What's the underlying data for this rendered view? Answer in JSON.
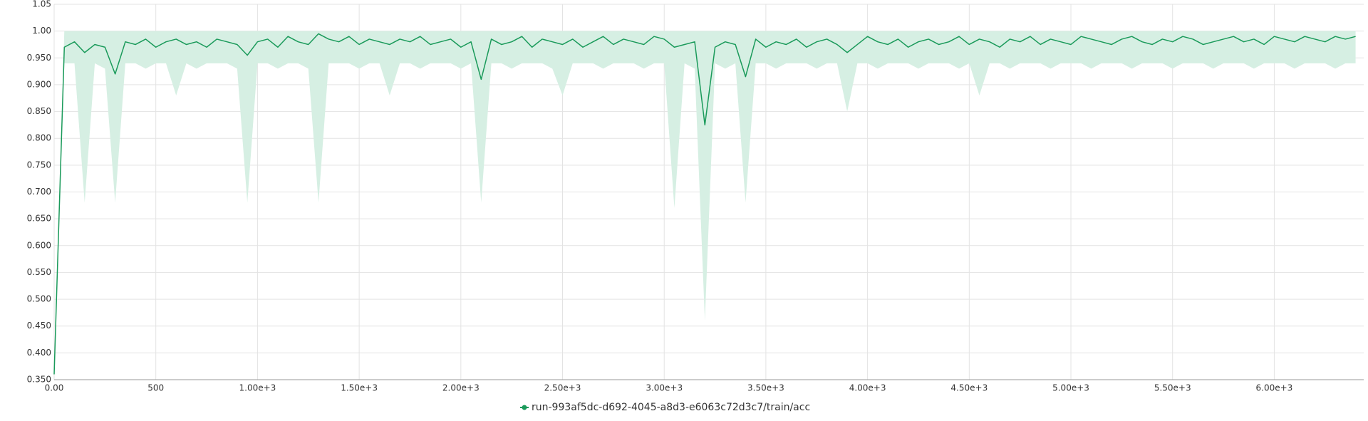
{
  "chart_data": {
    "type": "line",
    "x": [
      0,
      50,
      100,
      150,
      200,
      250,
      300,
      350,
      400,
      450,
      500,
      550,
      600,
      650,
      700,
      750,
      800,
      850,
      900,
      950,
      1000,
      1050,
      1100,
      1150,
      1200,
      1250,
      1300,
      1350,
      1400,
      1450,
      1500,
      1550,
      1600,
      1650,
      1700,
      1750,
      1800,
      1850,
      1900,
      1950,
      2000,
      2050,
      2100,
      2150,
      2200,
      2250,
      2300,
      2350,
      2400,
      2450,
      2500,
      2550,
      2600,
      2650,
      2700,
      2750,
      2800,
      2850,
      2900,
      2950,
      3000,
      3050,
      3100,
      3150,
      3200,
      3250,
      3300,
      3350,
      3400,
      3450,
      3500,
      3550,
      3600,
      3650,
      3700,
      3750,
      3800,
      3850,
      3900,
      3950,
      4000,
      4050,
      4100,
      4150,
      4200,
      4250,
      4300,
      4350,
      4400,
      4450,
      4500,
      4550,
      4600,
      4650,
      4700,
      4750,
      4800,
      4850,
      4900,
      4950,
      5000,
      5050,
      5100,
      5150,
      5200,
      5250,
      5300,
      5350,
      5400,
      5450,
      5500,
      5550,
      5600,
      5650,
      5700,
      5750,
      5800,
      5850,
      5900,
      5950,
      6000,
      6050,
      6100,
      6150,
      6200,
      6250,
      6300,
      6350,
      6400
    ],
    "series": [
      {
        "name": "run-993af5dc-d692-4045-a8d3-e6063c72d3c7/train/acc",
        "color": "#1a9a5a",
        "band_color": "#d6efe3",
        "values": [
          0.36,
          0.97,
          0.98,
          0.96,
          0.975,
          0.97,
          0.92,
          0.98,
          0.975,
          0.985,
          0.97,
          0.98,
          0.985,
          0.975,
          0.98,
          0.97,
          0.985,
          0.98,
          0.975,
          0.955,
          0.98,
          0.985,
          0.97,
          0.99,
          0.98,
          0.975,
          0.995,
          0.985,
          0.98,
          0.99,
          0.975,
          0.985,
          0.98,
          0.975,
          0.985,
          0.98,
          0.99,
          0.975,
          0.98,
          0.985,
          0.97,
          0.98,
          0.91,
          0.985,
          0.975,
          0.98,
          0.99,
          0.97,
          0.985,
          0.98,
          0.975,
          0.985,
          0.97,
          0.98,
          0.99,
          0.975,
          0.985,
          0.98,
          0.975,
          0.99,
          0.985,
          0.97,
          0.975,
          0.98,
          0.825,
          0.97,
          0.98,
          0.975,
          0.915,
          0.985,
          0.97,
          0.98,
          0.975,
          0.985,
          0.97,
          0.98,
          0.985,
          0.975,
          0.96,
          0.975,
          0.99,
          0.98,
          0.975,
          0.985,
          0.97,
          0.98,
          0.985,
          0.975,
          0.98,
          0.99,
          0.975,
          0.985,
          0.98,
          0.97,
          0.985,
          0.98,
          0.99,
          0.975,
          0.985,
          0.98,
          0.975,
          0.99,
          0.985,
          0.98,
          0.975,
          0.985,
          0.99,
          0.98,
          0.975,
          0.985,
          0.98,
          0.99,
          0.985,
          0.975,
          0.98,
          0.985,
          0.99,
          0.98,
          0.985,
          0.975,
          0.99,
          0.985,
          0.98,
          0.99,
          0.985,
          0.98,
          0.99,
          0.985,
          0.99
        ],
        "lower": [
          0.36,
          0.94,
          0.94,
          0.68,
          0.94,
          0.93,
          0.68,
          0.94,
          0.94,
          0.93,
          0.94,
          0.94,
          0.88,
          0.94,
          0.93,
          0.94,
          0.94,
          0.94,
          0.93,
          0.68,
          0.94,
          0.94,
          0.93,
          0.94,
          0.94,
          0.93,
          0.68,
          0.94,
          0.94,
          0.94,
          0.93,
          0.94,
          0.94,
          0.88,
          0.94,
          0.94,
          0.93,
          0.94,
          0.94,
          0.94,
          0.93,
          0.94,
          0.68,
          0.94,
          0.94,
          0.93,
          0.94,
          0.94,
          0.94,
          0.93,
          0.88,
          0.94,
          0.94,
          0.94,
          0.93,
          0.94,
          0.94,
          0.94,
          0.93,
          0.94,
          0.94,
          0.67,
          0.94,
          0.93,
          0.46,
          0.94,
          0.93,
          0.94,
          0.68,
          0.94,
          0.94,
          0.93,
          0.94,
          0.94,
          0.94,
          0.93,
          0.94,
          0.94,
          0.85,
          0.94,
          0.94,
          0.93,
          0.94,
          0.94,
          0.94,
          0.93,
          0.94,
          0.94,
          0.94,
          0.93,
          0.94,
          0.88,
          0.94,
          0.94,
          0.93,
          0.94,
          0.94,
          0.94,
          0.93,
          0.94,
          0.94,
          0.94,
          0.93,
          0.94,
          0.94,
          0.94,
          0.93,
          0.94,
          0.94,
          0.94,
          0.93,
          0.94,
          0.94,
          0.94,
          0.93,
          0.94,
          0.94,
          0.94,
          0.93,
          0.94,
          0.94,
          0.94,
          0.93,
          0.94,
          0.94,
          0.94,
          0.93,
          0.94,
          0.94
        ],
        "upper": [
          0.36,
          1,
          1,
          1,
          1,
          1,
          1,
          1,
          1,
          1,
          1,
          1,
          1,
          1,
          1,
          1,
          1,
          1,
          1,
          1,
          1,
          1,
          1,
          1,
          1,
          1,
          1,
          1,
          1,
          1,
          1,
          1,
          1,
          1,
          1,
          1,
          1,
          1,
          1,
          1,
          1,
          1,
          1,
          1,
          1,
          1,
          1,
          1,
          1,
          1,
          1,
          1,
          1,
          1,
          1,
          1,
          1,
          1,
          1,
          1,
          1,
          1,
          1,
          1,
          1,
          1,
          1,
          1,
          1,
          1,
          1,
          1,
          1,
          1,
          1,
          1,
          1,
          1,
          1,
          1,
          1,
          1,
          1,
          1,
          1,
          1,
          1,
          1,
          1,
          1,
          1,
          1,
          1,
          1,
          1,
          1,
          1,
          1,
          1,
          1,
          1,
          1,
          1,
          1,
          1,
          1,
          1,
          1,
          1,
          1,
          1,
          1,
          1,
          1,
          1,
          1,
          1,
          1,
          1,
          1,
          1,
          1,
          1,
          1,
          1,
          1,
          1,
          1,
          1
        ]
      }
    ],
    "xlim": [
      0,
      6440
    ],
    "ylim": [
      0.35,
      1.05
    ],
    "xticks": [
      {
        "value": 0,
        "label": "0.00"
      },
      500,
      {
        "value": 1000,
        "label": "1.00e+3"
      },
      {
        "value": 1500,
        "label": "1.50e+3"
      },
      {
        "value": 2000,
        "label": "2.00e+3"
      },
      {
        "value": 2500,
        "label": "2.50e+3"
      },
      {
        "value": 3000,
        "label": "3.00e+3"
      },
      {
        "value": 3500,
        "label": "3.50e+3"
      },
      {
        "value": 4000,
        "label": "4.00e+3"
      },
      {
        "value": 4500,
        "label": "4.50e+3"
      },
      {
        "value": 5000,
        "label": "5.00e+3"
      },
      {
        "value": 5500,
        "label": "5.50e+3"
      },
      {
        "value": 6000,
        "label": "6.00e+3"
      }
    ],
    "yticks": [
      {
        "value": 0.35,
        "label": "0.350"
      },
      {
        "value": 0.4,
        "label": "0.400"
      },
      {
        "value": 0.45,
        "label": "0.450"
      },
      {
        "value": 0.5,
        "label": "0.500"
      },
      {
        "value": 0.55,
        "label": "0.550"
      },
      {
        "value": 0.6,
        "label": "0.600"
      },
      {
        "value": 0.65,
        "label": "0.650"
      },
      {
        "value": 0.7,
        "label": "0.700"
      },
      {
        "value": 0.75,
        "label": "0.750"
      },
      {
        "value": 0.8,
        "label": "0.800"
      },
      {
        "value": 0.85,
        "label": "0.850"
      },
      {
        "value": 0.9,
        "label": "0.900"
      },
      {
        "value": 0.95,
        "label": "0.950"
      },
      {
        "value": 1,
        "label": "1.00"
      },
      1.05
    ],
    "grid": true
  }
}
